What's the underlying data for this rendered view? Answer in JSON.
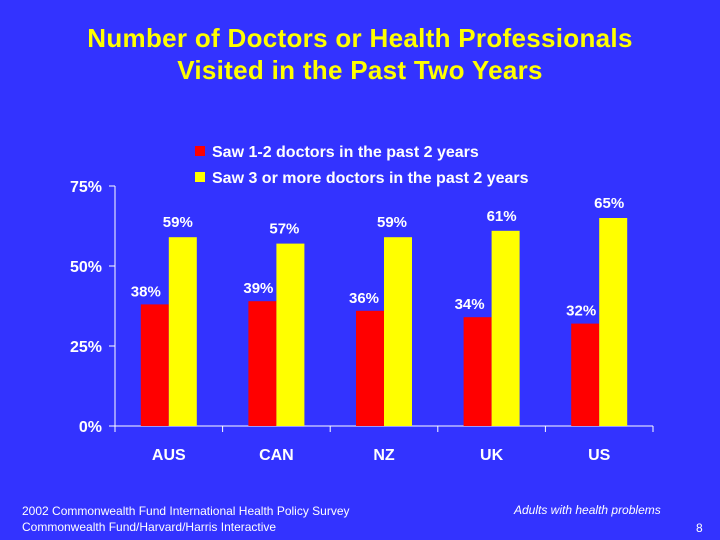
{
  "title": {
    "line1": "Number of Doctors or Health Professionals",
    "line2": "Visited in the Past Two Years"
  },
  "footer": {
    "source_line1": "2002 Commonwealth Fund International Health Policy Survey",
    "source_line2": "Commonwealth Fund/Harvard/Harris Interactive",
    "note": "Adults with health problems",
    "page_number": "8"
  },
  "colors": {
    "background": "#3333FF",
    "title": "#FFFF00",
    "series1": "#FF0000",
    "series2": "#FFFF00",
    "text": "#FFFFFF"
  },
  "chart_data": {
    "type": "bar",
    "title": "Number of Doctors or Health Professionals Visited in the Past Two Years",
    "categories": [
      "AUS",
      "CAN",
      "NZ",
      "UK",
      "US"
    ],
    "series": [
      {
        "name": "Saw 1-2 doctors in the past 2 years",
        "values": [
          38,
          39,
          36,
          34,
          32
        ],
        "labels": [
          "38%",
          "39%",
          "36%",
          "34%",
          "32%"
        ],
        "color": "#FF0000"
      },
      {
        "name": "Saw 3 or more doctors in the past 2 years",
        "values": [
          59,
          57,
          59,
          61,
          65
        ],
        "labels": [
          "59%",
          "57%",
          "59%",
          "61%",
          "65%"
        ],
        "color": "#FFFF00"
      }
    ],
    "ylim": [
      0,
      75
    ],
    "yticks": [
      0,
      25,
      50,
      75
    ],
    "ytick_labels": [
      "0%",
      "25%",
      "50%",
      "75%"
    ],
    "xlabel": "",
    "ylabel": "",
    "legend_position": "top-right",
    "grid": false
  }
}
